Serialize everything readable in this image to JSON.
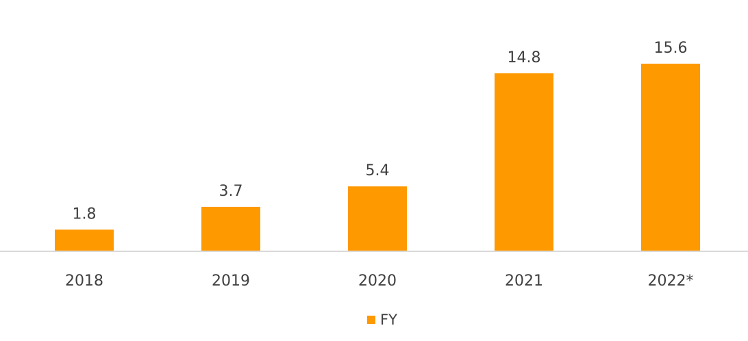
{
  "chart_data": {
    "type": "bar",
    "categories": [
      "2018",
      "2019",
      "2020",
      "2021",
      "2022*"
    ],
    "series": [
      {
        "name": "FY",
        "values": [
          1.8,
          3.7,
          5.4,
          14.8,
          15.6
        ]
      }
    ],
    "data_labels": [
      "1.8",
      "3.7",
      "5.4",
      "14.8",
      "15.6"
    ],
    "title": "",
    "xlabel": "",
    "ylabel": "",
    "ylim": [
      0,
      15.6
    ],
    "grid": false,
    "legend": "bottom-center",
    "colors": {
      "bar": "#ff9900",
      "axis": "#d9d9d9",
      "text": "#404040"
    }
  }
}
